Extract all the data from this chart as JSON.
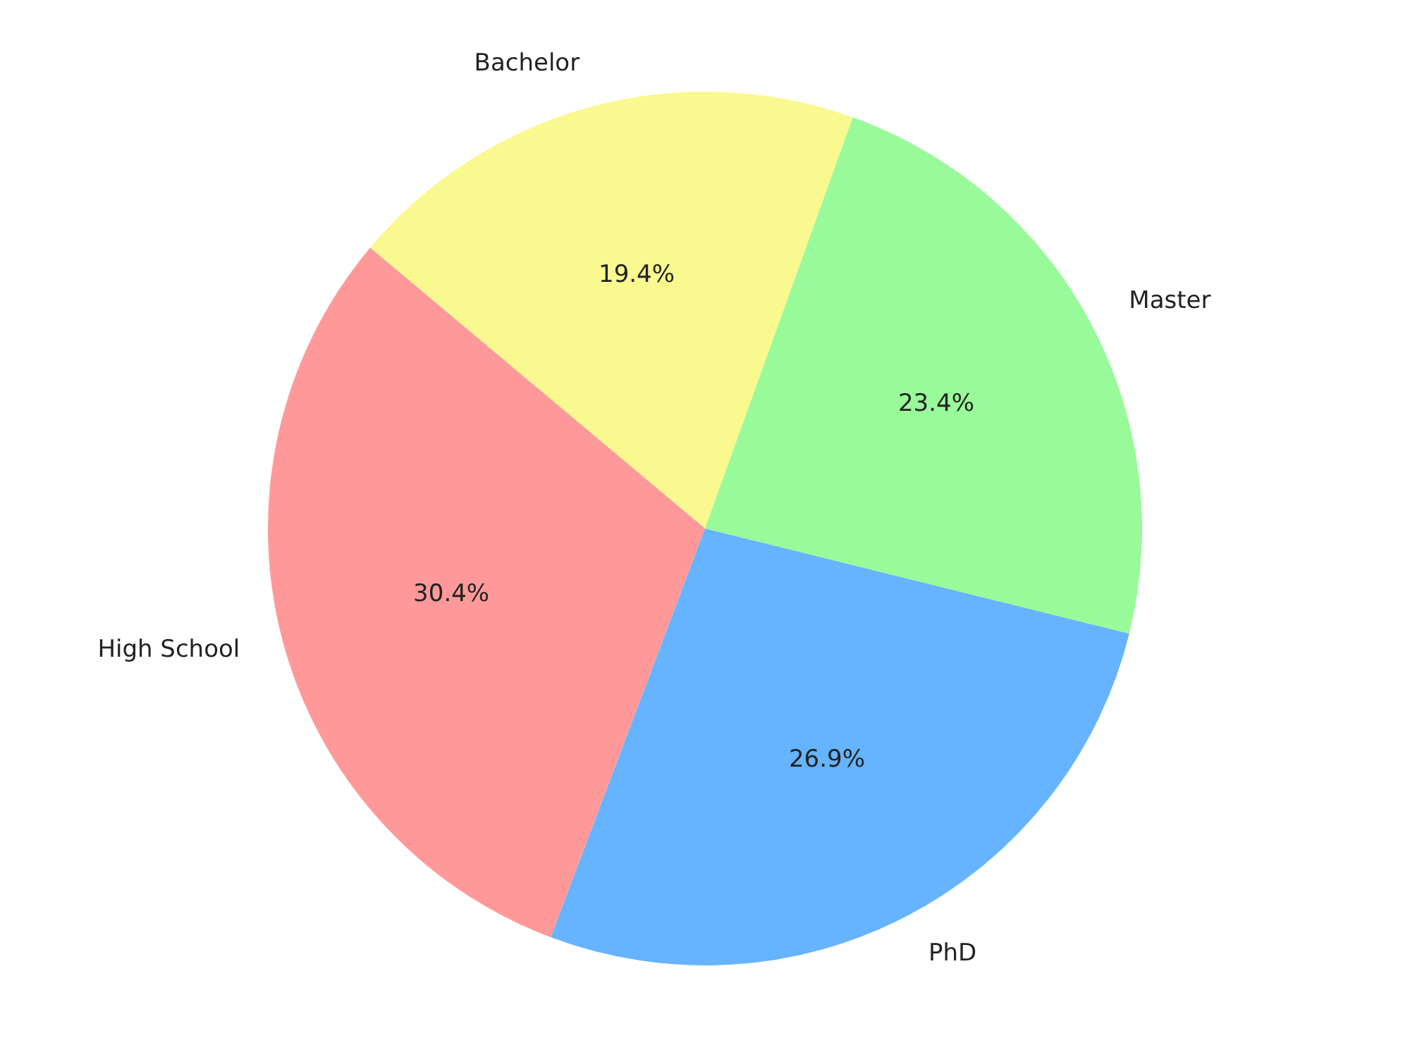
{
  "chart_data": {
    "type": "pie",
    "categories": [
      "Bachelor",
      "Master",
      "PhD",
      "High School"
    ],
    "values": [
      19.4,
      23.4,
      26.9,
      30.4
    ],
    "colors": [
      "#f9f98f",
      "#99fa99",
      "#66b3ff",
      "#ff9999"
    ],
    "value_labels": [
      "19.4%",
      "23.4%",
      "26.9%",
      "30.4%"
    ],
    "legend": false
  }
}
